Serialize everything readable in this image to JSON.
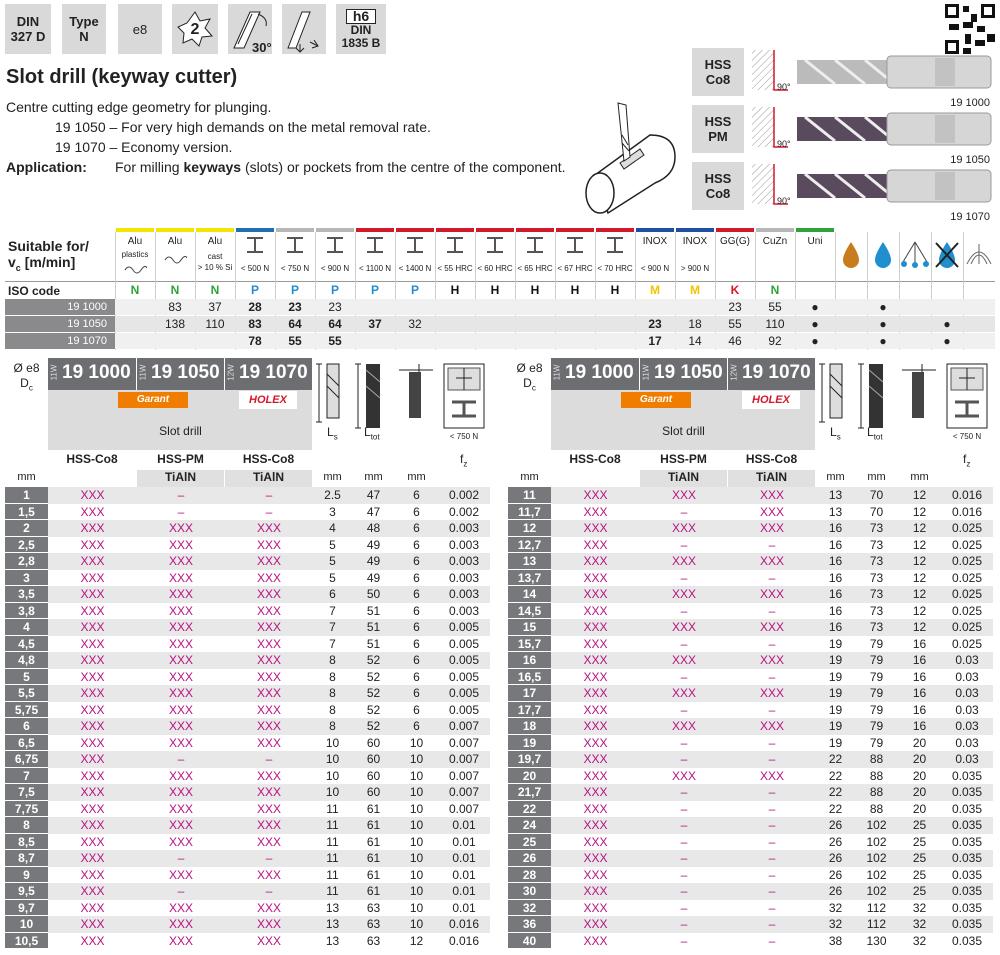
{
  "header": {
    "badges": [
      [
        "DIN",
        "327 D"
      ],
      [
        "Type",
        "N"
      ],
      [
        "e8"
      ],
      [
        "2"
      ],
      [
        "30°"
      ],
      [
        "h6",
        "DIN",
        "1835 B"
      ]
    ]
  },
  "title": "Slot drill (keyway cutter)",
  "description": [
    "Centre cutting edge geometry for plunging.",
    "19 1050 – For very high demands on the metal removal rate.",
    "19 1070 – Economy version."
  ],
  "application": {
    "label": "Application:",
    "text": [
      "For milling ",
      "keyways",
      " (slots) or pockets from the centre of the component."
    ]
  },
  "products": [
    {
      "material": [
        "HSS",
        "Co8"
      ],
      "angle": "90°",
      "article": "19 1000"
    },
    {
      "material": [
        "HSS",
        "PM"
      ],
      "angle": "90°",
      "article": "19 1050"
    },
    {
      "material": [
        "HSS",
        "Co8"
      ],
      "angle": "90°",
      "article": "19 1070"
    }
  ],
  "suitability": {
    "heading": [
      "Suitable for/",
      "v",
      "c",
      " [m/min]"
    ],
    "iso_label": "ISO code",
    "columns": [
      {
        "label": "Alu",
        "sub": [
          "plastics"
        ],
        "iso": "N",
        "color": "#f2e500"
      },
      {
        "label": "Alu",
        "sub": [],
        "iso": "N",
        "color": "#f2e500"
      },
      {
        "label": "Alu",
        "sub": [
          "cast",
          "> 10 % Si"
        ],
        "iso": "N",
        "color": "#f2e500"
      },
      {
        "label": null,
        "sub": [
          "< 500 N"
        ],
        "iso": "P",
        "color": "#1f6fb4"
      },
      {
        "label": null,
        "sub": [
          "< 750 N"
        ],
        "iso": "P",
        "color": "#b7b7b7"
      },
      {
        "label": null,
        "sub": [
          "< 900 N"
        ],
        "iso": "P",
        "color": "#b7b7b7"
      },
      {
        "label": null,
        "sub": [
          "< 1100 N"
        ],
        "iso": "P",
        "color": "#d3182a"
      },
      {
        "label": null,
        "sub": [
          "< 1400 N"
        ],
        "iso": "P",
        "color": "#d3182a"
      },
      {
        "label": null,
        "sub": [
          "< 55 HRC"
        ],
        "iso": "H",
        "color": "#d3182a"
      },
      {
        "label": null,
        "sub": [
          "< 60 HRC"
        ],
        "iso": "H",
        "color": "#d3182a"
      },
      {
        "label": null,
        "sub": [
          "< 65 HRC"
        ],
        "iso": "H",
        "color": "#d3182a"
      },
      {
        "label": null,
        "sub": [
          "< 67 HRC"
        ],
        "iso": "H",
        "color": "#d3182a"
      },
      {
        "label": null,
        "sub": [
          "< 70 HRC"
        ],
        "iso": "H",
        "color": "#d3182a"
      },
      {
        "label": "INOX",
        "sub": [
          "< 900 N"
        ],
        "iso": "M",
        "color": "#1f4fa0"
      },
      {
        "label": "INOX",
        "sub": [
          "> 900 N"
        ],
        "iso": "M",
        "color": "#1f4fa0"
      },
      {
        "label": "GG(G)",
        "sub": [],
        "iso": "K",
        "color": "#d3182a"
      },
      {
        "label": "CuZn",
        "sub": [],
        "iso": "N",
        "color": "#b7b7b7"
      },
      {
        "label": "Uni",
        "sub": [],
        "iso": null,
        "color": "#2fa33a"
      }
    ],
    "iso_colors": {
      "N": "#2fa33a",
      "P": "#1f8fd0",
      "H": "#111111",
      "M": "#f2c500",
      "K": "#d3182a"
    },
    "rows": [
      {
        "article": "19 1000",
        "values": [
          null,
          83,
          37,
          28,
          23,
          23,
          null,
          null,
          null,
          null,
          null,
          null,
          null,
          null,
          null,
          23,
          55,
          "●"
        ],
        "bold": [
          3,
          4
        ],
        "coolant": [
          null,
          "●",
          null,
          null,
          null
        ]
      },
      {
        "article": "19 1050",
        "values": [
          null,
          138,
          110,
          83,
          64,
          64,
          37,
          32,
          null,
          null,
          null,
          null,
          null,
          23,
          18,
          55,
          110,
          "●"
        ],
        "bold": [
          3,
          4,
          5,
          6,
          13
        ],
        "coolant": [
          null,
          "●",
          null,
          "●",
          null
        ]
      },
      {
        "article": "19 1070",
        "values": [
          null,
          null,
          null,
          78,
          55,
          55,
          null,
          null,
          null,
          null,
          null,
          null,
          null,
          17,
          14,
          46,
          92,
          "●"
        ],
        "bold": [
          3,
          4,
          5,
          13
        ],
        "coolant": [
          null,
          "●",
          null,
          "●",
          null
        ]
      }
    ]
  },
  "dimensions": {
    "header": {
      "dia": "Ø e8",
      "dc": [
        "D",
        "c"
      ],
      "articles": [
        {
          "prefix": "11W",
          "number": "19 1000"
        },
        {
          "prefix": "11W",
          "number": "19 1050"
        },
        {
          "prefix": "12W",
          "number": "19 1070"
        }
      ],
      "brands": [
        "Garant",
        "HOLEX"
      ],
      "name": "Slot drill",
      "materials": [
        [
          "HSS-Co8"
        ],
        [
          "HSS-PM",
          "TiAlN"
        ],
        [
          "HSS-Co8",
          "TiAlN"
        ]
      ],
      "unit": "mm",
      "ls": [
        "L",
        "s"
      ],
      "ltot": [
        "L",
        "tot"
      ],
      "strength": "< 750 N",
      "fz": [
        "f",
        "z"
      ]
    },
    "tables": [
      {
        "rows": [
          [
            "1",
            "XXX",
            "–",
            "–",
            2.5,
            47,
            6,
            0.002
          ],
          [
            "1,5",
            "XXX",
            "–",
            "–",
            3,
            47,
            6,
            0.002
          ],
          [
            "2",
            "XXX",
            "XXX",
            "XXX",
            4,
            48,
            6,
            0.003
          ],
          [
            "2,5",
            "XXX",
            "XXX",
            "XXX",
            5,
            49,
            6,
            0.003
          ],
          [
            "2,8",
            "XXX",
            "XXX",
            "XXX",
            5,
            49,
            6,
            0.003
          ],
          [
            "3",
            "XXX",
            "XXX",
            "XXX",
            5,
            49,
            6,
            0.003
          ],
          [
            "3,5",
            "XXX",
            "XXX",
            "XXX",
            6,
            50,
            6,
            0.003
          ],
          [
            "3,8",
            "XXX",
            "XXX",
            "XXX",
            7,
            51,
            6,
            0.003
          ],
          [
            "4",
            "XXX",
            "XXX",
            "XXX",
            7,
            51,
            6,
            0.005
          ],
          [
            "4,5",
            "XXX",
            "XXX",
            "XXX",
            7,
            51,
            6,
            0.005
          ],
          [
            "4,8",
            "XXX",
            "XXX",
            "XXX",
            8,
            52,
            6,
            0.005
          ],
          [
            "5",
            "XXX",
            "XXX",
            "XXX",
            8,
            52,
            6,
            0.005
          ],
          [
            "5,5",
            "XXX",
            "XXX",
            "XXX",
            8,
            52,
            6,
            0.005
          ],
          [
            "5,75",
            "XXX",
            "XXX",
            "XXX",
            8,
            52,
            6,
            0.005
          ],
          [
            "6",
            "XXX",
            "XXX",
            "XXX",
            8,
            52,
            6,
            0.007
          ],
          [
            "6,5",
            "XXX",
            "XXX",
            "XXX",
            10,
            60,
            10,
            0.007
          ],
          [
            "6,75",
            "XXX",
            "–",
            "–",
            10,
            60,
            10,
            0.007
          ],
          [
            "7",
            "XXX",
            "XXX",
            "XXX",
            10,
            60,
            10,
            0.007
          ],
          [
            "7,5",
            "XXX",
            "XXX",
            "XXX",
            10,
            60,
            10,
            0.007
          ],
          [
            "7,75",
            "XXX",
            "XXX",
            "XXX",
            11,
            61,
            10,
            0.007
          ],
          [
            "8",
            "XXX",
            "XXX",
            "XXX",
            11,
            61,
            10,
            0.01
          ],
          [
            "8,5",
            "XXX",
            "XXX",
            "XXX",
            11,
            61,
            10,
            0.01
          ],
          [
            "8,7",
            "XXX",
            "–",
            "–",
            11,
            61,
            10,
            0.01
          ],
          [
            "9",
            "XXX",
            "XXX",
            "XXX",
            11,
            61,
            10,
            0.01
          ],
          [
            "9,5",
            "XXX",
            "–",
            "–",
            11,
            61,
            10,
            0.01
          ],
          [
            "9,7",
            "XXX",
            "XXX",
            "XXX",
            13,
            63,
            10,
            0.01
          ],
          [
            "10",
            "XXX",
            "XXX",
            "XXX",
            13,
            63,
            10,
            0.016
          ],
          [
            "10,5",
            "XXX",
            "XXX",
            "XXX",
            13,
            63,
            12,
            0.016
          ]
        ]
      },
      {
        "rows": [
          [
            "11",
            "XXX",
            "XXX",
            "XXX",
            13,
            70,
            12,
            0.016
          ],
          [
            "11,7",
            "XXX",
            "–",
            "XXX",
            13,
            70,
            12,
            0.016
          ],
          [
            "12",
            "XXX",
            "XXX",
            "XXX",
            16,
            73,
            12,
            0.025
          ],
          [
            "12,7",
            "XXX",
            "–",
            "–",
            16,
            73,
            12,
            0.025
          ],
          [
            "13",
            "XXX",
            "XXX",
            "XXX",
            16,
            73,
            12,
            0.025
          ],
          [
            "13,7",
            "XXX",
            "–",
            "–",
            16,
            73,
            12,
            0.025
          ],
          [
            "14",
            "XXX",
            "XXX",
            "XXX",
            16,
            73,
            12,
            0.025
          ],
          [
            "14,5",
            "XXX",
            "–",
            "–",
            16,
            73,
            12,
            0.025
          ],
          [
            "15",
            "XXX",
            "XXX",
            "XXX",
            16,
            73,
            12,
            0.025
          ],
          [
            "15,7",
            "XXX",
            "–",
            "–",
            19,
            79,
            16,
            0.025
          ],
          [
            "16",
            "XXX",
            "XXX",
            "XXX",
            19,
            79,
            16,
            0.03
          ],
          [
            "16,5",
            "XXX",
            "–",
            "–",
            19,
            79,
            16,
            0.03
          ],
          [
            "17",
            "XXX",
            "XXX",
            "XXX",
            19,
            79,
            16,
            0.03
          ],
          [
            "17,7",
            "XXX",
            "–",
            "–",
            19,
            79,
            16,
            0.03
          ],
          [
            "18",
            "XXX",
            "XXX",
            "XXX",
            19,
            79,
            16,
            0.03
          ],
          [
            "19",
            "XXX",
            "–",
            "–",
            19,
            79,
            20,
            0.03
          ],
          [
            "19,7",
            "XXX",
            "–",
            "–",
            22,
            88,
            20,
            0.03
          ],
          [
            "20",
            "XXX",
            "XXX",
            "XXX",
            22,
            88,
            20,
            0.035
          ],
          [
            "21,7",
            "XXX",
            "–",
            "–",
            22,
            88,
            20,
            0.035
          ],
          [
            "22",
            "XXX",
            "–",
            "–",
            22,
            88,
            20,
            0.035
          ],
          [
            "24",
            "XXX",
            "–",
            "–",
            26,
            102,
            25,
            0.035
          ],
          [
            "25",
            "XXX",
            "–",
            "–",
            26,
            102,
            25,
            0.035
          ],
          [
            "26",
            "XXX",
            "–",
            "–",
            26,
            102,
            25,
            0.035
          ],
          [
            "28",
            "XXX",
            "–",
            "–",
            26,
            102,
            25,
            0.035
          ],
          [
            "30",
            "XXX",
            "–",
            "–",
            26,
            102,
            25,
            0.035
          ],
          [
            "32",
            "XXX",
            "–",
            "–",
            32,
            112,
            32,
            0.035
          ],
          [
            "36",
            "XXX",
            "–",
            "–",
            32,
            112,
            32,
            0.035
          ],
          [
            "40",
            "XXX",
            "–",
            "–",
            38,
            130,
            32,
            0.035
          ]
        ]
      }
    ]
  }
}
